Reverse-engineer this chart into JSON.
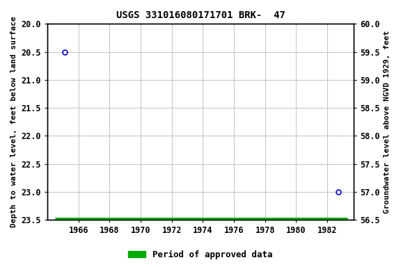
{
  "title": "USGS 331016080171701 BRK-  47",
  "ylabel_left": "Depth to water level, feet below land surface",
  "ylabel_right": "Groundwater level above NGVD 1929, feet",
  "xlim": [
    1964.0,
    1983.7
  ],
  "ylim_left": [
    20.0,
    23.5
  ],
  "ylim_right": [
    56.5,
    60.0
  ],
  "xticks": [
    1966,
    1968,
    1970,
    1972,
    1974,
    1976,
    1978,
    1980,
    1982
  ],
  "yticks_left": [
    20.0,
    20.5,
    21.0,
    21.5,
    22.0,
    22.5,
    23.0,
    23.5
  ],
  "yticks_right": [
    56.5,
    57.0,
    57.5,
    58.0,
    58.5,
    59.0,
    59.5,
    60.0
  ],
  "data_points_x": [
    1965.1,
    1982.7
  ],
  "data_points_y": [
    20.5,
    23.0
  ],
  "point_color": "#0000cc",
  "green_bar_x1": 1964.5,
  "green_bar_x2": 1983.3,
  "green_bar_y": 23.5,
  "green_color": "#00aa00",
  "grid_color": "#c8c8c8",
  "bg_color": "#ffffff",
  "font_family": "monospace",
  "title_fontsize": 10,
  "label_fontsize": 8,
  "tick_fontsize": 8.5,
  "legend_fontsize": 9
}
